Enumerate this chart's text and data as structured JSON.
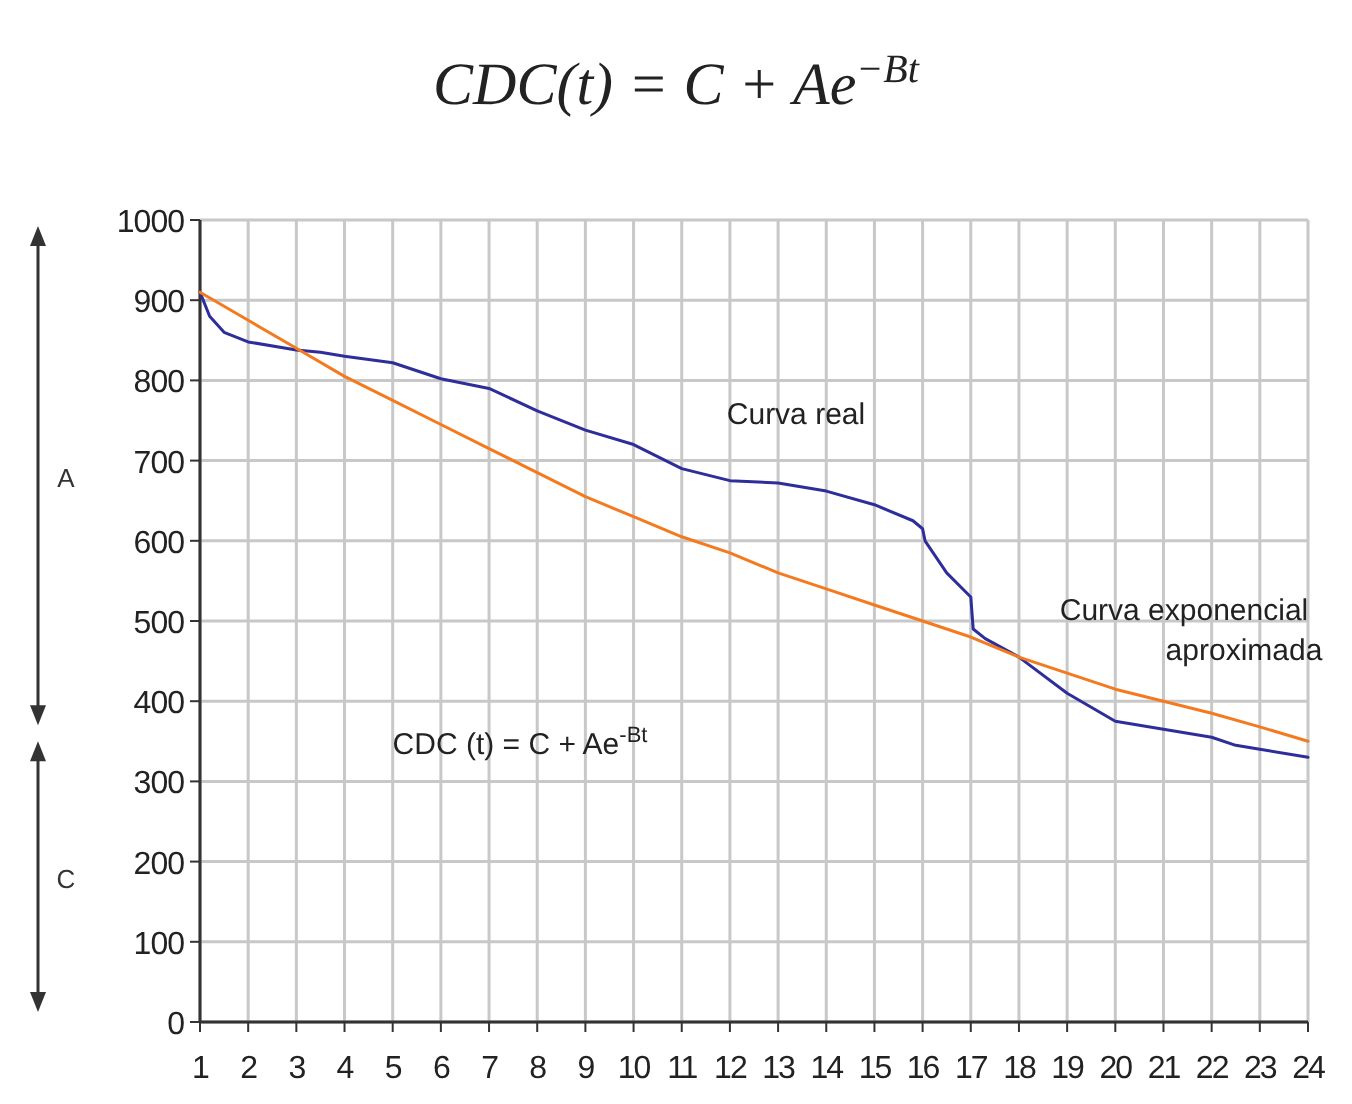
{
  "chart_data": {
    "type": "line",
    "title": "CDC(t) = C + Ae$^{−Bt}$",
    "xlim": [
      1,
      24
    ],
    "xticks": [
      1,
      2,
      3,
      4,
      5,
      6,
      7,
      8,
      9,
      10,
      11,
      12,
      13,
      14,
      15,
      16,
      17,
      18,
      19,
      20,
      21,
      22,
      23,
      24
    ],
    "ylim": [
      0,
      1000
    ],
    "yticks": [
      0,
      100,
      200,
      300,
      400,
      500,
      600,
      700,
      800,
      900,
      1000
    ],
    "grid": true,
    "series": [
      {
        "color": "#2e2e9a",
        "x": [
          1,
          1.2,
          1.5,
          2,
          3,
          3.5,
          4,
          5,
          6,
          7,
          8,
          9,
          10,
          11,
          12,
          13,
          14,
          15,
          15.8,
          16,
          16.05,
          16.5,
          17,
          17.05,
          17.3,
          18,
          19,
          20,
          21,
          22,
          22.5,
          23,
          24
        ],
        "values": [
          910,
          880,
          860,
          848,
          838,
          835,
          830,
          822,
          802,
          790,
          762,
          738,
          720,
          690,
          675,
          672,
          662,
          645,
          625,
          615,
          600,
          560,
          530,
          490,
          478,
          455,
          410,
          375,
          365,
          355,
          345,
          340,
          330
        ]
      },
      {
        "color": "#f47a20",
        "x": [
          1,
          2,
          3,
          4,
          5,
          6,
          7,
          8,
          9,
          10,
          11,
          12,
          13,
          14,
          15,
          16,
          17,
          18,
          19,
          20,
          21,
          22,
          23,
          24
        ],
        "values": [
          910,
          875,
          840,
          805,
          775,
          745,
          715,
          685,
          655,
          630,
          605,
          585,
          560,
          540,
          520,
          500,
          480,
          455,
          435,
          415,
          400,
          385,
          368,
          350
        ]
      }
    ],
    "annotations": [
      "Curva real",
      "Curva exponencial aproximada",
      "CDC (t) = C + Ae$^{-Bt}$",
      "A",
      "C"
    ]
  }
}
